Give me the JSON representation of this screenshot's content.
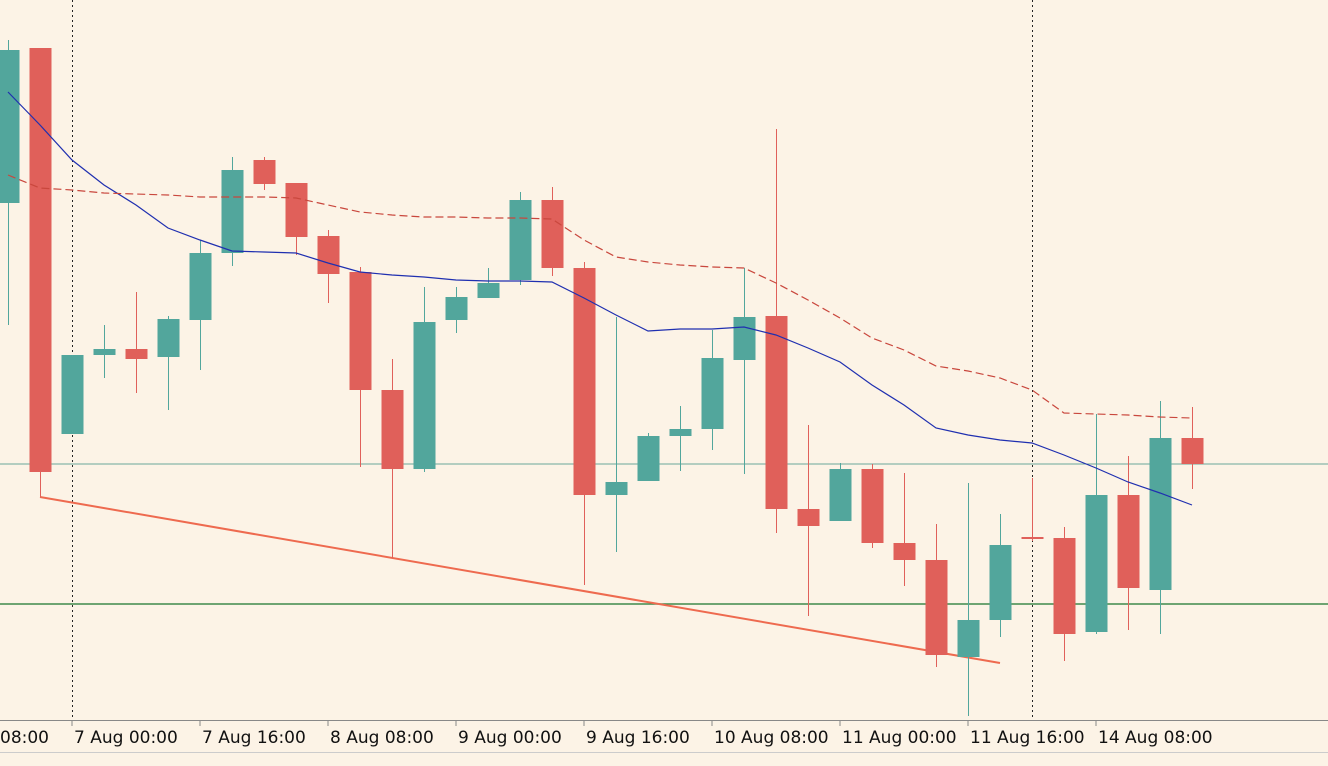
{
  "chart_data": {
    "type": "candlestick",
    "categories": [
      null,
      null,
      "7 Aug 00:00",
      null,
      null,
      null,
      "7 Aug 16:00",
      null,
      null,
      null,
      "8 Aug 08:00",
      null,
      null,
      null,
      "9 Aug 00:00",
      null,
      null,
      null,
      "9 Aug 16:00",
      null,
      null,
      null,
      "10 Aug 08:00",
      null,
      null,
      null,
      "11 Aug 00:00",
      null,
      null,
      null,
      "11 Aug 16:00",
      null,
      null,
      null,
      "14 Aug 08:00",
      null,
      null,
      null
    ],
    "x_label_clipped": "08:00",
    "open": [
      517,
      672,
      286,
      365,
      371,
      363,
      400,
      467,
      560,
      537,
      484,
      448,
      330,
      251,
      400,
      422,
      440,
      520,
      452,
      225,
      239,
      284,
      291,
      360,
      404,
      211,
      199,
      251,
      177,
      160,
      63,
      100,
      183,
      182,
      88,
      225,
      130,
      282
    ],
    "high": [
      680,
      672,
      365,
      395,
      428,
      404,
      480,
      563,
      563,
      537,
      490,
      453,
      361,
      433,
      433,
      452,
      528,
      533,
      458,
      403,
      287,
      314,
      390,
      452,
      591,
      295,
      257,
      256,
      247,
      196,
      237,
      206,
      242,
      193,
      306,
      264,
      319,
      313
    ],
    "low": [
      395,
      223,
      286,
      342,
      327,
      310,
      350,
      454,
      530,
      465,
      417,
      253,
      162,
      248,
      387,
      422,
      435,
      444,
      135,
      168,
      239,
      249,
      270,
      246,
      187,
      104,
      199,
      172,
      134,
      53,
      4,
      83,
      179,
      59,
      86,
      90,
      86,
      231
    ],
    "close": [
      670,
      248,
      365,
      371,
      361,
      401,
      467,
      550,
      536,
      483,
      446,
      330,
      251,
      398,
      423,
      437,
      520,
      452,
      225,
      238,
      284,
      291,
      362,
      403,
      211,
      194,
      251,
      177,
      160,
      65,
      100,
      175,
      181,
      86,
      225,
      132,
      282,
      256
    ],
    "bull_color": "#52a69c",
    "bear_color": "#e0605a",
    "ylim": [
      0,
      720
    ],
    "overlays": [
      {
        "color": "#1f2fb0",
        "dashed": false,
        "values": [
          628,
          595,
          560,
          535,
          515,
          492,
          480,
          469,
          468,
          467,
          457,
          448,
          445,
          443,
          440,
          439,
          439,
          438,
          422,
          405,
          389,
          391,
          391,
          393,
          385,
          372,
          358,
          335,
          315,
          292,
          285,
          280,
          277,
          265,
          252,
          238,
          227,
          215
        ]
      },
      {
        "color": "#c9473d",
        "dashed": true,
        "values": [
          545,
          532,
          530,
          527,
          526,
          525,
          523,
          523,
          523,
          522,
          515,
          508,
          505,
          503,
          503,
          502,
          502,
          501,
          480,
          463,
          458,
          455,
          453,
          452,
          437,
          420,
          402,
          382,
          370,
          354,
          349,
          342,
          330,
          307,
          306,
          305,
          303,
          302
        ]
      }
    ],
    "hlines": [
      {
        "value": 256,
        "color": "#6aa79b"
      },
      {
        "value": 116,
        "color": "#3f8a4c"
      }
    ],
    "trendline": {
      "color": "#ee6a4f",
      "values": [
        223,
        57
      ]
    }
  }
}
